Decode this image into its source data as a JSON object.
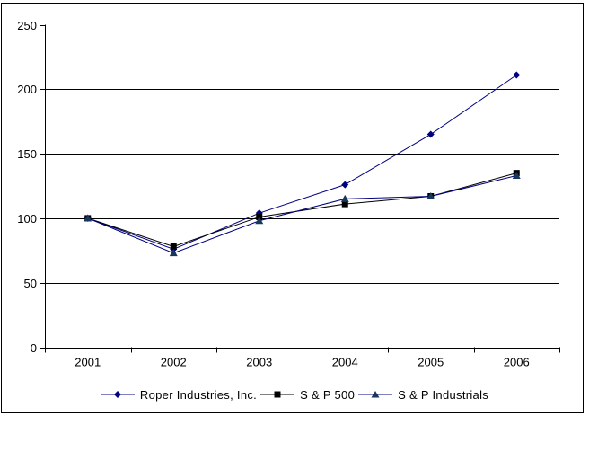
{
  "chart_data": {
    "type": "line",
    "title": "",
    "xlabel": "",
    "ylabel": "",
    "x_categories": [
      "2001",
      "2002",
      "2003",
      "2004",
      "2005",
      "2006"
    ],
    "y_ticks": [
      0,
      50,
      100,
      150,
      200,
      250
    ],
    "ylim": [
      0,
      250
    ],
    "grid": "horizontal",
    "legend_position": "bottom",
    "series": [
      {
        "name": "Roper Industries, Inc.",
        "marker": "diamond",
        "line_color": "#000080",
        "marker_color": "#000080",
        "values": [
          100,
          76,
          104,
          126,
          165,
          211
        ]
      },
      {
        "name": "S & P 500",
        "marker": "square",
        "line_color": "#000000",
        "marker_color": "#000000",
        "values": [
          100,
          78,
          101,
          111,
          117,
          135
        ]
      },
      {
        "name": "S & P Industrials",
        "marker": "triangle",
        "line_color": "#000080",
        "marker_color": "#17375E",
        "values": [
          100,
          73,
          98,
          115,
          117,
          133
        ]
      }
    ]
  }
}
